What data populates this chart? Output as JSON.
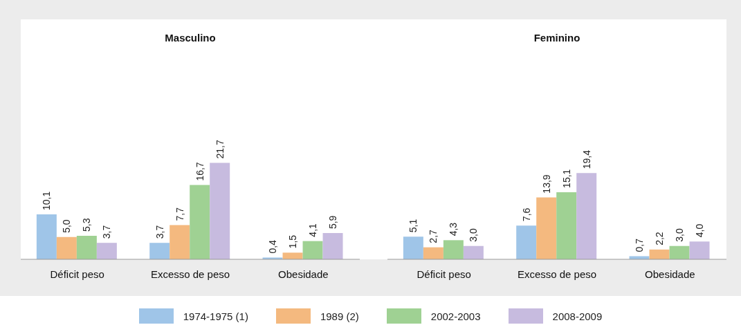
{
  "chart_data": [
    {
      "type": "bar",
      "title": "Masculino",
      "categories": [
        "Déficit peso",
        "Excesso de peso",
        "Obesidade"
      ],
      "data_labels": true,
      "legend": false,
      "series": [
        {
          "color": "#9fc5e8",
          "values": [
            10.1,
            3.7,
            0.4
          ],
          "value_labels": [
            "10,1",
            "3,7",
            "0,4"
          ]
        },
        {
          "color": "#f4b97f",
          "values": [
            5.0,
            7.7,
            1.5
          ],
          "value_labels": [
            "5,0",
            "7,7",
            "1,5"
          ]
        },
        {
          "color": "#9fd193",
          "values": [
            5.3,
            16.7,
            4.1
          ],
          "value_labels": [
            "5,3",
            "16,7",
            "4,1"
          ]
        },
        {
          "color": "#c7bbdf",
          "values": [
            3.7,
            21.7,
            5.9
          ],
          "value_labels": [
            "3,7",
            "21,7",
            "5,9"
          ]
        }
      ]
    },
    {
      "type": "bar",
      "title": "Feminino",
      "categories": [
        "Déficit peso",
        "Excesso de peso",
        "Obesidade"
      ],
      "data_labels": true,
      "legend": "bottom",
      "series": [
        {
          "name": "1974-1975 (1)",
          "color": "#9fc5e8",
          "values": [
            5.1,
            7.6,
            0.7
          ],
          "value_labels": [
            "5,1",
            "7,6",
            "0,7"
          ]
        },
        {
          "name": "1989 (2)",
          "color": "#f4b97f",
          "values": [
            2.7,
            13.9,
            2.2
          ],
          "value_labels": [
            "2,7",
            "13,9",
            "2,2"
          ]
        },
        {
          "name": "2002-2003",
          "color": "#9fd193",
          "values": [
            4.3,
            15.1,
            3.0
          ],
          "value_labels": [
            "4,3",
            "15,1",
            "3,0"
          ]
        },
        {
          "name": "2008-2009",
          "color": "#c7bbdf",
          "values": [
            3.0,
            19.4,
            4.0
          ],
          "value_labels": [
            "3,0",
            "19,4",
            "4,0"
          ]
        }
      ]
    }
  ]
}
